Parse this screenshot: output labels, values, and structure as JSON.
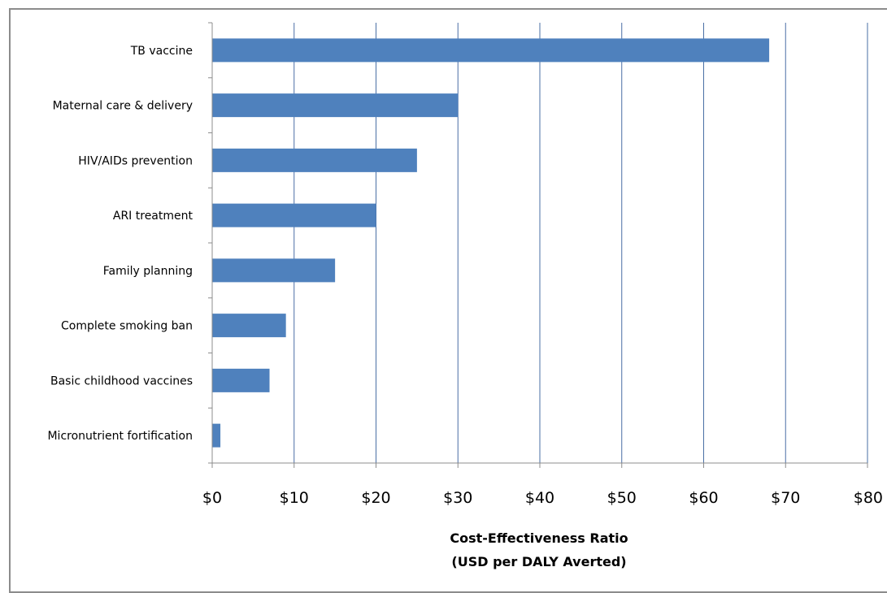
{
  "chart_data": {
    "type": "bar",
    "orientation": "horizontal",
    "categories": [
      "TB vaccine",
      "Maternal care & delivery",
      "HIV/AIDs prevention",
      "ARI treatment",
      "Family planning",
      "Complete smoking ban",
      "Basic childhood vaccines",
      "Micronutrient fortification"
    ],
    "values": [
      68,
      30,
      25,
      20,
      15,
      9,
      7,
      1
    ],
    "xlim": [
      0,
      80
    ],
    "xticks": [
      0,
      10,
      20,
      30,
      40,
      50,
      60,
      70,
      80
    ],
    "tick_labels": [
      "$0",
      "$10",
      "$20",
      "$30",
      "$40",
      "$50",
      "$60",
      "$70",
      "$80"
    ],
    "xlabel_line1": "Cost-Effectiveness Ratio",
    "xlabel_line2": "(USD per DALY Averted)",
    "grid": "vertical",
    "bar_color": "#4f81bd",
    "grid_color": "#4a6fa5"
  }
}
